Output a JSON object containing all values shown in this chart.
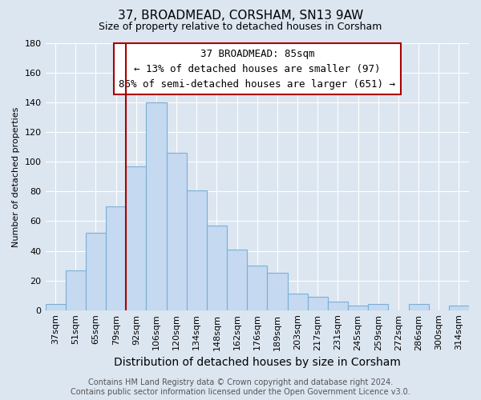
{
  "title": "37, BROADMEAD, CORSHAM, SN13 9AW",
  "subtitle": "Size of property relative to detached houses in Corsham",
  "xlabel": "Distribution of detached houses by size in Corsham",
  "ylabel": "Number of detached properties",
  "footer_line1": "Contains HM Land Registry data © Crown copyright and database right 2024.",
  "footer_line2": "Contains public sector information licensed under the Open Government Licence v3.0.",
  "bar_labels": [
    "37sqm",
    "51sqm",
    "65sqm",
    "79sqm",
    "92sqm",
    "106sqm",
    "120sqm",
    "134sqm",
    "148sqm",
    "162sqm",
    "176sqm",
    "189sqm",
    "203sqm",
    "217sqm",
    "231sqm",
    "245sqm",
    "259sqm",
    "272sqm",
    "286sqm",
    "300sqm",
    "314sqm"
  ],
  "bar_values": [
    4,
    27,
    52,
    70,
    97,
    140,
    106,
    81,
    57,
    41,
    30,
    25,
    11,
    9,
    6,
    3,
    4,
    0,
    4,
    0,
    3
  ],
  "bar_color": "#c5d9f1",
  "bar_edge_color": "#7bafd4",
  "vline_x": 4,
  "vline_color": "#aa0000",
  "ylim": [
    0,
    180
  ],
  "yticks": [
    0,
    20,
    40,
    60,
    80,
    100,
    120,
    140,
    160,
    180
  ],
  "annotation_text_line1": "37 BROADMEAD: 85sqm",
  "annotation_text_line2": "← 13% of detached houses are smaller (97)",
  "annotation_text_line3": "86% of semi-detached houses are larger (651) →",
  "grid_color": "#ffffff",
  "bg_color": "#dce6f1",
  "title_fontsize": 11,
  "subtitle_fontsize": 9,
  "xlabel_fontsize": 10,
  "ylabel_fontsize": 8,
  "tick_fontsize": 8,
  "ann_fontsize": 9,
  "footer_fontsize": 7
}
